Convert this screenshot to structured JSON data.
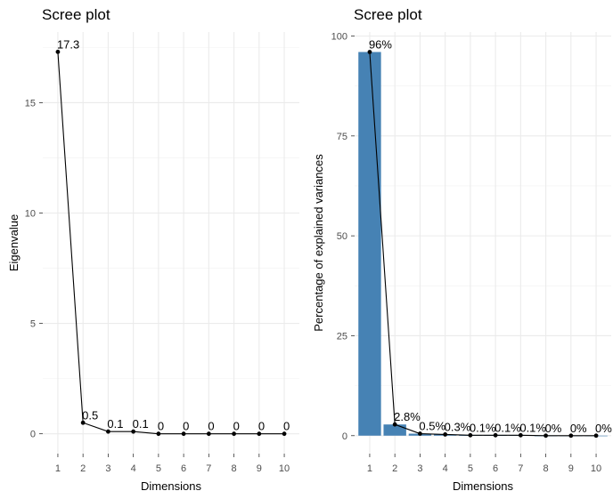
{
  "chart_data": [
    {
      "type": "line",
      "title": "Scree plot",
      "xlabel": "Dimensions",
      "ylabel": "Eigenvalue",
      "x": [
        1,
        2,
        3,
        4,
        5,
        6,
        7,
        8,
        9,
        10
      ],
      "values": [
        17.3,
        0.5,
        0.1,
        0.1,
        0,
        0,
        0,
        0,
        0,
        0
      ],
      "labels": [
        "17.3",
        "0.5",
        "0.1",
        "0.1",
        "0",
        "0",
        "0",
        "0",
        "0",
        "0"
      ],
      "ylim": [
        -0.9,
        18.2
      ],
      "yticks": [
        0,
        5,
        10,
        15
      ],
      "xticks": [
        1,
        2,
        3,
        4,
        5,
        6,
        7,
        8,
        9,
        10
      ],
      "grid": true,
      "line_color": "#000000"
    },
    {
      "type": "bar",
      "title": "Scree plot",
      "xlabel": "Dimensions",
      "ylabel": "Percentage of explained variances",
      "x": [
        1,
        2,
        3,
        4,
        5,
        6,
        7,
        8,
        9,
        10
      ],
      "values": [
        96,
        2.8,
        0.5,
        0.3,
        0.1,
        0.1,
        0.1,
        0,
        0,
        0
      ],
      "labels": [
        "96%",
        "2.8%",
        "0.5%",
        "0.3%",
        "0.1%",
        "0.1%",
        "0.1%",
        "0%",
        "0%",
        "0%"
      ],
      "ylim": [
        -4.5,
        101
      ],
      "yticks": [
        0,
        25,
        50,
        75,
        100
      ],
      "xticks": [
        1,
        2,
        3,
        4,
        5,
        6,
        7,
        8,
        9,
        10
      ],
      "grid": true,
      "bar_color": "#4682b4",
      "line_color": "#000000"
    }
  ]
}
